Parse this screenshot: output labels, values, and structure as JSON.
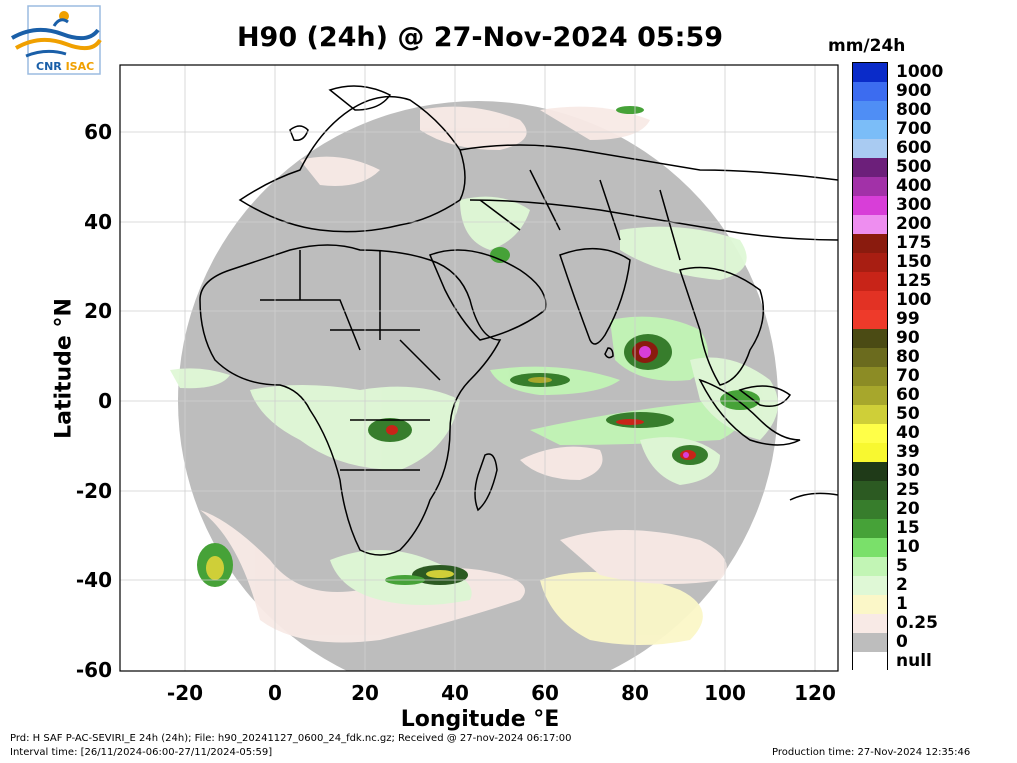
{
  "header": {
    "title": "H90 (24h) @ 27-Nov-2024 05:59",
    "unit": "mm/24h",
    "logo_text_cnr": "CNR",
    "logo_text_isac": "ISAC"
  },
  "axes": {
    "xlabel": "Longitude °E",
    "ylabel": "Latitude °N",
    "xticks": [
      "-20",
      "0",
      "20",
      "40",
      "60",
      "80",
      "100",
      "120"
    ],
    "yticks": [
      "60",
      "40",
      "20",
      "0",
      "-20",
      "-40",
      "-60"
    ],
    "xlim": [
      -35,
      125
    ],
    "ylim": [
      -60,
      75
    ]
  },
  "legend": {
    "labels": [
      "1000",
      "900",
      "800",
      "700",
      "600",
      "500",
      "400",
      "300",
      "200",
      "175",
      "150",
      "125",
      "100",
      "99",
      "90",
      "80",
      "70",
      "60",
      "50",
      "40",
      "39",
      "30",
      "25",
      "20",
      "15",
      "10",
      "5",
      "2",
      "1",
      "0.25",
      "0",
      "null"
    ],
    "colors": [
      "#0a2bc9",
      "#3c6cf0",
      "#4f8ef5",
      "#7bbdf8",
      "#a9cbf2",
      "#6c1f7a",
      "#a231a8",
      "#d83ed8",
      "#ee8ef0",
      "#8a1b0e",
      "#a81e12",
      "#c82418",
      "#e23224",
      "#ee3a2a",
      "#4b4b14",
      "#6b6b1e",
      "#8c8c25",
      "#a7a72c",
      "#cfcf38",
      "#ffff48",
      "#f8f830",
      "#1f3a18",
      "#2c5a22",
      "#377d2c",
      "#46a238",
      "#7ae06a",
      "#c2f5b5",
      "#dff8d6",
      "#fbf7c8",
      "#f8eae6",
      "#bdbdbd",
      "#ffffff"
    ]
  },
  "footer": {
    "line1": "Prd: H SAF P-AC-SEVIRI_E 24h (24h); File: h90_20241127_0600_24_fdk.nc.gz; Received @ 27-nov-2024 06:17:00",
    "line2": "Interval time: [26/11/2024-06:00-27/11/2024-05:59]",
    "production": "Production time: 27-Nov-2024 12:35:46"
  },
  "map": {
    "disk_color": "#bdbdbd",
    "land_border_color": "#000000"
  }
}
